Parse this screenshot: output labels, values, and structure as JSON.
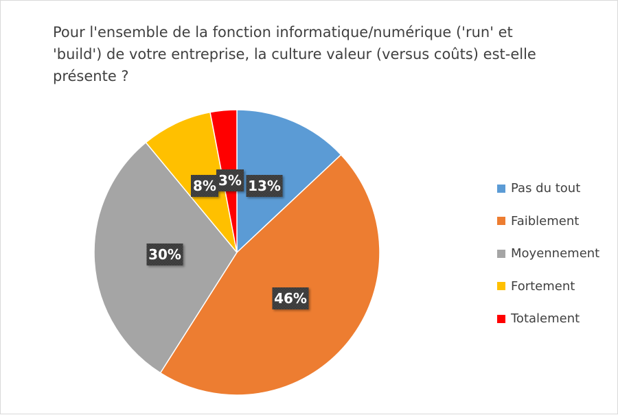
{
  "chart_data": {
    "type": "pie",
    "title": "Pour l'ensemble de la fonction informatique/numérique ('run' et 'build') de votre entreprise, la culture valeur (versus coûts) est-elle présente ?",
    "title_lines": [
      "Pour l'ensemble de la fonction informatique/numérique ('run' et",
      "'build') de votre entreprise, la culture valeur (versus coûts) est-elle",
      "présente ?"
    ],
    "legend_position": "right",
    "slices": [
      {
        "label": "Pas du tout",
        "value": 13,
        "display": "13%",
        "color": "#5b9bd5"
      },
      {
        "label": "Faiblement",
        "value": 46,
        "display": "46%",
        "color": "#ed7d31"
      },
      {
        "label": "Moyennement",
        "value": 30,
        "display": "30%",
        "color": "#a5a5a5"
      },
      {
        "label": "Fortement",
        "value": 8,
        "display": "8%",
        "color": "#ffc000"
      },
      {
        "label": "Totalement",
        "value": 3,
        "display": "3%",
        "color": "#ff0000"
      }
    ]
  }
}
